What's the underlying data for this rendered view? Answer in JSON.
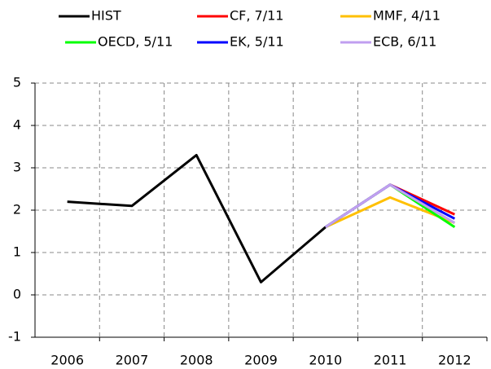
{
  "chart_data": {
    "type": "line",
    "categories": [
      "2006",
      "2007",
      "2008",
      "2009",
      "2010",
      "2011",
      "2012"
    ],
    "series": [
      {
        "name": "HIST",
        "color": "#000000",
        "values": [
          2.2,
          2.1,
          3.3,
          0.3,
          1.6,
          null,
          null
        ]
      },
      {
        "name": "CF, 7/11",
        "color": "#ff0000",
        "values": [
          null,
          null,
          null,
          null,
          1.6,
          2.6,
          1.9
        ]
      },
      {
        "name": "MMF, 4/11",
        "color": "#ffc000",
        "values": [
          null,
          null,
          null,
          null,
          1.6,
          2.3,
          1.7
        ]
      },
      {
        "name": "OECD, 5/11",
        "color": "#00ff00",
        "values": [
          null,
          null,
          null,
          null,
          1.6,
          2.6,
          1.6
        ]
      },
      {
        "name": "EK, 5/11",
        "color": "#0000ff",
        "values": [
          null,
          null,
          null,
          null,
          1.6,
          2.6,
          1.8
        ]
      },
      {
        "name": "ECB, 6/11",
        "color": "#c09ff0",
        "values": [
          null,
          null,
          null,
          null,
          1.6,
          2.6,
          1.7
        ]
      }
    ],
    "ylim": [
      -1,
      5
    ],
    "yticks": [
      -1,
      0,
      1,
      2,
      3,
      4,
      5
    ],
    "grid": true,
    "legend": "top"
  }
}
